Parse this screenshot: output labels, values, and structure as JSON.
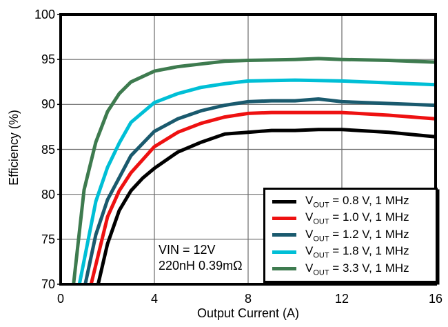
{
  "chart_data": {
    "type": "line",
    "title": "",
    "xlabel": "Output Current (A)",
    "ylabel": "Efficiency (%)",
    "xlim": [
      0,
      16
    ],
    "ylim": [
      70,
      100
    ],
    "xticks": [
      0,
      4,
      8,
      12,
      16
    ],
    "yticks": [
      100,
      95,
      90,
      85,
      80,
      75,
      70
    ],
    "grid": true,
    "legend_position": "bottom-right",
    "annotation": {
      "line1": "VIN = 12V",
      "line2": "220nH 0.39mΩ"
    },
    "series": [
      {
        "id": "vout-0-8v",
        "name": "VOUT = 0.8 V, 1 MHz",
        "label": {
          "sym": "V",
          "sub": "OUT",
          "rest": " = 0.8 V, 1 MHz"
        },
        "color": "#000000",
        "points": [
          [
            1.6,
            70
          ],
          [
            2,
            74.5
          ],
          [
            2.5,
            78.2
          ],
          [
            3,
            80.4
          ],
          [
            3.5,
            81.8
          ],
          [
            4,
            82.9
          ],
          [
            5,
            84.7
          ],
          [
            6,
            85.8
          ],
          [
            7,
            86.7
          ],
          [
            8,
            86.9
          ],
          [
            9,
            87.1
          ],
          [
            10,
            87.1
          ],
          [
            11,
            87.2
          ],
          [
            12,
            87.2
          ],
          [
            14,
            86.9
          ],
          [
            16,
            86.4
          ]
        ]
      },
      {
        "id": "vout-1-0v",
        "name": "VOUT = 1.0 V, 1 MHz",
        "label": {
          "sym": "V",
          "sub": "OUT",
          "rest": " = 1.0 V, 1 MHz"
        },
        "color": "#ee1111",
        "points": [
          [
            1.3,
            70
          ],
          [
            2,
            77.5
          ],
          [
            2.5,
            80.4
          ],
          [
            3,
            82.4
          ],
          [
            4,
            85.3
          ],
          [
            5,
            86.9
          ],
          [
            6,
            87.9
          ],
          [
            7,
            88.6
          ],
          [
            8,
            89
          ],
          [
            9,
            89.1
          ],
          [
            10,
            89.1
          ],
          [
            11,
            89.1
          ],
          [
            12,
            89.1
          ],
          [
            14,
            88.8
          ],
          [
            16,
            88.4
          ]
        ]
      },
      {
        "id": "vout-1-2v",
        "name": "VOUT = 1.2 V, 1 MHz",
        "label": {
          "sym": "V",
          "sub": "OUT",
          "rest": " = 1.2 V, 1 MHz"
        },
        "color": "#1a5a6e",
        "points": [
          [
            1.05,
            70
          ],
          [
            1.5,
            75.5
          ],
          [
            2,
            79.4
          ],
          [
            3,
            84.3
          ],
          [
            4,
            87
          ],
          [
            5,
            88.4
          ],
          [
            6,
            89.3
          ],
          [
            7,
            89.9
          ],
          [
            8,
            90.3
          ],
          [
            9,
            90.4
          ],
          [
            10,
            90.4
          ],
          [
            11,
            90.6
          ],
          [
            12,
            90.3
          ],
          [
            14,
            90.1
          ],
          [
            16,
            89.9
          ]
        ]
      },
      {
        "id": "vout-1-8v",
        "name": "VOUT = 1.8 V, 1 MHz",
        "label": {
          "sym": "V",
          "sub": "OUT",
          "rest": " = 1.8 V, 1 MHz"
        },
        "color": "#00bfd6",
        "points": [
          [
            0.8,
            70
          ],
          [
            1.5,
            79.2
          ],
          [
            2,
            83
          ],
          [
            2.5,
            85.7
          ],
          [
            3,
            88
          ],
          [
            4,
            90.2
          ],
          [
            5,
            91.2
          ],
          [
            6,
            91.9
          ],
          [
            7,
            92.3
          ],
          [
            8,
            92.6
          ],
          [
            10,
            92.7
          ],
          [
            12,
            92.6
          ],
          [
            14,
            92.4
          ],
          [
            16,
            92.2
          ]
        ]
      },
      {
        "id": "vout-3-3v",
        "name": "VOUT = 3.3 V, 1 MHz",
        "label": {
          "sym": "V",
          "sub": "OUT",
          "rest": " = 3.3 V, 1 MHz"
        },
        "color": "#3e7b4f",
        "points": [
          [
            0.55,
            70
          ],
          [
            1,
            80.5
          ],
          [
            1.5,
            85.8
          ],
          [
            2,
            89.2
          ],
          [
            2.5,
            91.2
          ],
          [
            3,
            92.5
          ],
          [
            4,
            93.7
          ],
          [
            5,
            94.2
          ],
          [
            6,
            94.5
          ],
          [
            7,
            94.8
          ],
          [
            8,
            94.9
          ],
          [
            10,
            95
          ],
          [
            11,
            95.1
          ],
          [
            12,
            95
          ],
          [
            14,
            94.9
          ],
          [
            16,
            94.7
          ]
        ]
      }
    ]
  }
}
